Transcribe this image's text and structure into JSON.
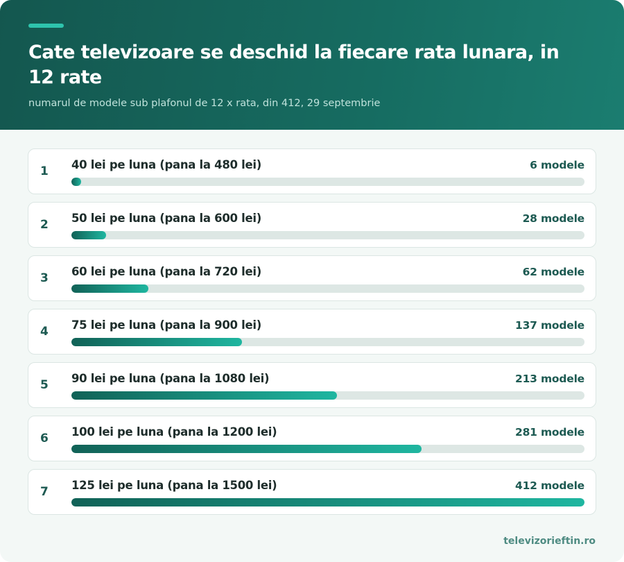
{
  "header": {
    "title": "Cate televizoare se deschid la fiecare rata lunara, in 12 rate",
    "subtitle": "numarul de modele sub plafonul de 12 x rata, din 412, 29 septembrie"
  },
  "colors": {
    "header_bg": "#166c61",
    "accent": "#2ec4ad",
    "bar_start": "#116257",
    "bar_end": "#1fb6a0",
    "track": "#dde7e4",
    "text_dark": "#1e2d2b",
    "value_text": "#1d5a52"
  },
  "chart_data": {
    "type": "bar",
    "orientation": "horizontal",
    "title": "Cate televizoare se deschid la fiecare rata lunara, in 12 rate",
    "subtitle": "numarul de modele sub plafonul de 12 x rata, din 412, 29 septembrie",
    "max": 412,
    "categories": [
      "40 lei pe luna (pana la 480 lei)",
      "50 lei pe luna (pana la 600 lei)",
      "60 lei pe luna (pana la 720 lei)",
      "75 lei pe luna (pana la 900 lei)",
      "90 lei pe luna (pana la 1080 lei)",
      "100 lei pe luna (pana la 1200 lei)",
      "125 lei pe luna (pana la 1500 lei)"
    ],
    "values": [
      6,
      28,
      62,
      137,
      213,
      281,
      412
    ],
    "ranks": [
      "1",
      "2",
      "3",
      "4",
      "5",
      "6",
      "7"
    ],
    "value_labels": [
      "6 modele",
      "28 modele",
      "62 modele",
      "137 modele",
      "213 modele",
      "281 modele",
      "412 modele"
    ]
  },
  "footer": {
    "brand": "televizorieftin.ro"
  }
}
